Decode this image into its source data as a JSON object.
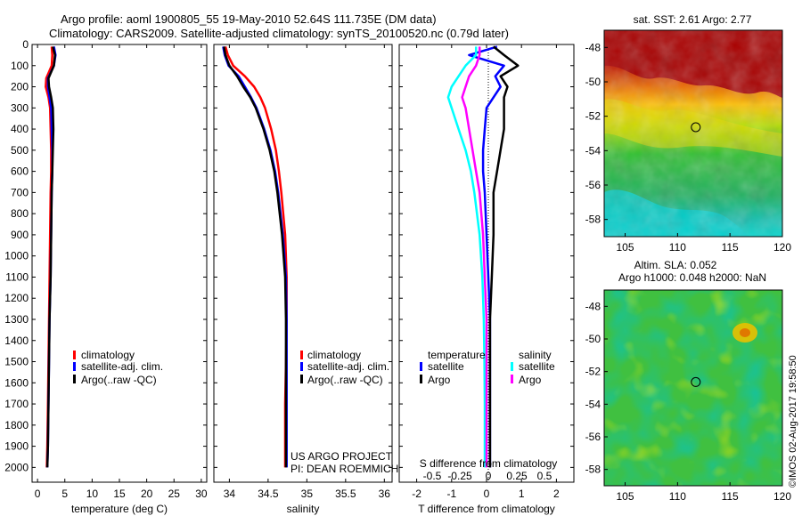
{
  "header": {
    "title": "Argo profile: aoml 1900805_55 19-May-2010 52.64S 111.735E (DM data)",
    "subtitle": "Climatology: CARS2009. Satellite-adjusted climatology: synTS_20100520.nc (0.79d later)"
  },
  "colors": {
    "climatology": "#ff0000",
    "satellite": "#0000ff",
    "argo": "#000000",
    "satellite_salinity": "#00ffff",
    "argo_salinity": "#ff00ff"
  },
  "chart_data": [
    {
      "type": "line",
      "name": "temperature-profile",
      "xlabel": "temperature (deg C)",
      "ylabel": "",
      "xlim": [
        -1,
        31
      ],
      "ylim": [
        2070,
        0
      ],
      "xticks": [
        0,
        5,
        10,
        15,
        20,
        25,
        30
      ],
      "yticks": [
        0,
        100,
        200,
        300,
        400,
        500,
        600,
        700,
        800,
        900,
        1000,
        1100,
        1200,
        1300,
        1400,
        1500,
        1600,
        1700,
        1800,
        1900,
        2000
      ],
      "legend": [
        "climatology",
        "satellite-adj. clim.",
        "Argo(..raw -QC)"
      ],
      "legend_position": "lower-center",
      "series": [
        {
          "name": "climatology",
          "color": "#ff0000",
          "x": [
            2.6,
            2.7,
            2.6,
            1.6,
            1.5,
            2.0,
            2.3,
            2.4,
            2.5,
            2.5,
            2.4,
            2.3,
            2.2,
            2.1,
            2.0,
            1.9,
            1.8,
            1.7
          ],
          "y": [
            10,
            50,
            100,
            160,
            200,
            250,
            300,
            400,
            500,
            600,
            700,
            900,
            1100,
            1300,
            1500,
            1700,
            1900,
            2000
          ]
        },
        {
          "name": "satellite-adj. clim.",
          "color": "#0000ff",
          "x": [
            3.0,
            3.3,
            3.0,
            1.9,
            1.9,
            2.2,
            2.5,
            2.6,
            2.7,
            2.7,
            2.6,
            2.5,
            2.4,
            2.2,
            2.1,
            2.0,
            1.9,
            1.8
          ],
          "y": [
            10,
            50,
            100,
            160,
            200,
            250,
            300,
            400,
            500,
            600,
            700,
            900,
            1100,
            1300,
            1500,
            1700,
            1900,
            2000
          ]
        },
        {
          "name": "Argo(..raw -QC)",
          "color": "#000000",
          "x": [
            2.8,
            3.2,
            3.0,
            2.0,
            2.1,
            2.5,
            2.8,
            2.9,
            2.8,
            2.7,
            2.6,
            2.5,
            2.4,
            2.2,
            2.1,
            2.0,
            1.9,
            1.8
          ],
          "y": [
            10,
            50,
            100,
            160,
            200,
            250,
            300,
            400,
            500,
            600,
            700,
            900,
            1100,
            1300,
            1500,
            1700,
            1900,
            2000
          ]
        }
      ]
    },
    {
      "type": "line",
      "name": "salinity-profile",
      "xlabel": "salinity",
      "xlim": [
        33.8,
        36.1
      ],
      "ylim": [
        2070,
        0
      ],
      "xticks": [
        34,
        34.5,
        35,
        35.5,
        36
      ],
      "legend": [
        "climatology",
        "satellite-adj. clim.",
        "Argo(..raw -QC)"
      ],
      "legend_position": "lower-right",
      "annotations": [
        "US ARGO PROJECT",
        "PI: DEAN ROEMMICH"
      ],
      "series": [
        {
          "name": "climatology",
          "color": "#ff0000",
          "x": [
            33.95,
            33.98,
            34.05,
            34.2,
            34.32,
            34.4,
            34.46,
            34.54,
            34.6,
            34.64,
            34.67,
            34.72,
            34.74,
            34.74,
            34.73,
            34.72,
            34.72,
            34.72
          ],
          "y": [
            10,
            50,
            100,
            150,
            200,
            250,
            300,
            400,
            500,
            600,
            700,
            900,
            1100,
            1300,
            1500,
            1700,
            1900,
            2000
          ]
        },
        {
          "name": "satellite-adj. clim.",
          "color": "#0000ff",
          "x": [
            33.92,
            33.94,
            33.99,
            34.12,
            34.2,
            34.28,
            34.35,
            34.45,
            34.53,
            34.59,
            34.63,
            34.69,
            34.73,
            34.74,
            34.74,
            34.74,
            34.74,
            34.74
          ],
          "y": [
            10,
            50,
            100,
            150,
            200,
            250,
            300,
            400,
            500,
            600,
            700,
            900,
            1100,
            1300,
            1500,
            1700,
            1900,
            2000
          ]
        },
        {
          "name": "Argo(..raw -QC)",
          "color": "#000000",
          "x": [
            33.93,
            33.95,
            34.0,
            34.1,
            34.18,
            34.27,
            34.34,
            34.44,
            34.52,
            34.58,
            34.62,
            34.68,
            34.72,
            34.73,
            34.73,
            34.73,
            34.73,
            34.73
          ],
          "y": [
            10,
            50,
            100,
            150,
            200,
            250,
            300,
            400,
            500,
            600,
            700,
            900,
            1100,
            1300,
            1500,
            1700,
            1900,
            2000
          ]
        }
      ]
    },
    {
      "type": "line",
      "name": "difference-profile",
      "xlabel": "T difference from climatology",
      "top_xlabel": "S difference from climatology",
      "xlim": [
        -2.5,
        2.5
      ],
      "ylim": [
        2070,
        0
      ],
      "xticks_bottom": [
        -2,
        -1,
        0,
        1,
        2
      ],
      "xticks_top": [
        "-0.5",
        "-0.25",
        "0",
        "0.25",
        "0.5"
      ],
      "legend_groups": [
        {
          "title": "temperature",
          "entries": [
            "satellite",
            "Argo"
          ]
        },
        {
          "title": "salinity",
          "entries": [
            "satellite",
            "Argo"
          ]
        }
      ],
      "series": [
        {
          "name": "temperature satellite",
          "color": "#0000ff",
          "x": [
            0.3,
            -0.5,
            0.5,
            0.25,
            0.4,
            0.2,
            0.0,
            -0.05,
            -0.1,
            -0.1,
            -0.05,
            0.0,
            0.05,
            0.1,
            0.1,
            0.1,
            0.1,
            0.1
          ],
          "y": [
            10,
            50,
            100,
            150,
            200,
            250,
            300,
            400,
            500,
            600,
            700,
            900,
            1100,
            1300,
            1500,
            1700,
            1900,
            2000
          ]
        },
        {
          "name": "temperature Argo",
          "color": "#000000",
          "x": [
            0.2,
            0.5,
            0.9,
            0.4,
            0.6,
            0.5,
            0.5,
            0.5,
            0.4,
            0.3,
            0.2,
            0.2,
            0.15,
            0.1,
            0.1,
            0.1,
            0.1,
            0.1
          ],
          "y": [
            10,
            50,
            100,
            150,
            200,
            250,
            300,
            400,
            500,
            600,
            700,
            900,
            1100,
            1300,
            1500,
            1700,
            1900,
            2000
          ]
        },
        {
          "name": "salinity satellite",
          "color": "#00ffff",
          "x": [
            -0.3,
            -0.3,
            -0.6,
            -0.8,
            -1.0,
            -1.1,
            -1.0,
            -0.8,
            -0.6,
            -0.45,
            -0.35,
            -0.2,
            -0.12,
            -0.08,
            -0.06,
            -0.05,
            -0.05,
            -0.05
          ],
          "y": [
            10,
            50,
            100,
            150,
            200,
            250,
            300,
            400,
            500,
            600,
            700,
            900,
            1100,
            1300,
            1500,
            1700,
            1900,
            2000
          ]
        },
        {
          "name": "salinity Argo",
          "color": "#ff00ff",
          "x": [
            -0.2,
            -0.2,
            -0.3,
            -0.5,
            -0.6,
            -0.7,
            -0.6,
            -0.5,
            -0.4,
            -0.3,
            -0.2,
            -0.1,
            -0.05,
            0.0,
            0.0,
            0.0,
            0.0,
            0.0
          ],
          "y": [
            10,
            50,
            100,
            150,
            200,
            250,
            300,
            400,
            500,
            600,
            700,
            900,
            1100,
            1300,
            1500,
            1700,
            1900,
            2000
          ]
        }
      ]
    },
    {
      "type": "heatmap",
      "name": "sst-map",
      "title": "sat. SST: 2.61 Argo: 2.77",
      "xlim": [
        103,
        120
      ],
      "ylim": [
        -59,
        -47
      ],
      "xticks": [
        105,
        110,
        115,
        120
      ],
      "yticks": [
        -48,
        -50,
        -52,
        -54,
        -56,
        -58
      ],
      "marker": {
        "x": 111.735,
        "y": -52.64
      }
    },
    {
      "type": "heatmap",
      "name": "sla-map",
      "title": "Altim. SLA: 0.052",
      "subtitle": "Argo h1000: 0.048 h2000: NaN",
      "xlim": [
        103,
        120
      ],
      "ylim": [
        -59,
        -47
      ],
      "xticks": [
        105,
        110,
        115,
        120
      ],
      "yticks": [
        -48,
        -50,
        -52,
        -54,
        -56,
        -58
      ],
      "marker": {
        "x": 111.735,
        "y": -52.64
      },
      "side_label": "©IMOS 02-Aug-2017 19:58:50"
    }
  ]
}
